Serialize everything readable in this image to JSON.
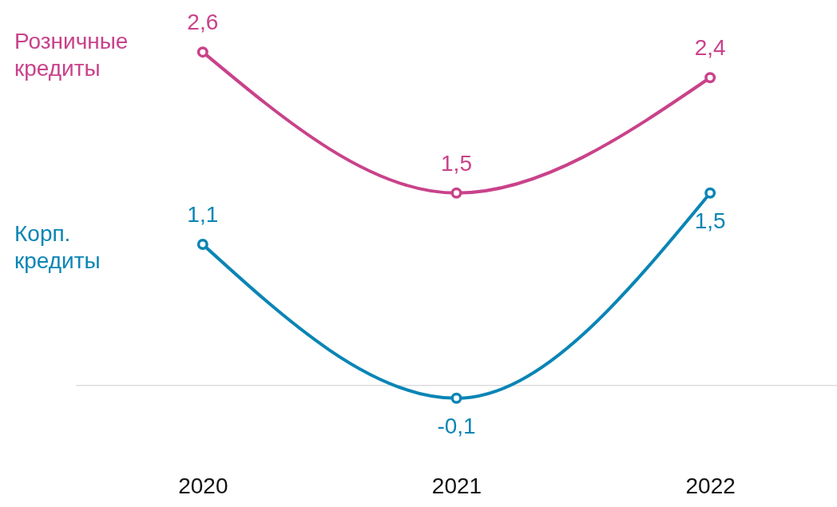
{
  "chart_data": {
    "type": "line",
    "categories": [
      "2020",
      "2021",
      "2022"
    ],
    "series": [
      {
        "name": "Розничные кредиты",
        "color": "#c9428a",
        "values": [
          2.6,
          1.5,
          2.4
        ],
        "value_labels": [
          "2,6",
          "1,5",
          "2,4"
        ]
      },
      {
        "name": "Корп. кредиты",
        "color": "#0a85b5",
        "values": [
          1.1,
          -0.1,
          1.5
        ],
        "value_labels": [
          "1,1",
          "-0,1",
          "1,5"
        ]
      }
    ],
    "ref_lines": [
      {
        "axis": "y",
        "value": 0,
        "color": "#dddddd"
      }
    ],
    "marker": "circle",
    "line_style": "solid",
    "legend": "left",
    "grid": false,
    "tick_labels": "x"
  }
}
